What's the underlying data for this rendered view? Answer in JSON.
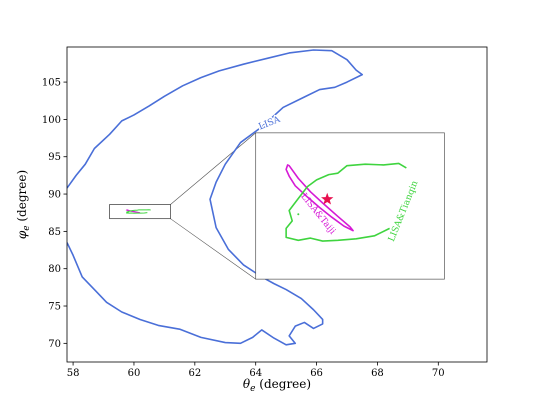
{
  "chart_data": {
    "type": "contour",
    "xlabel": "θ_e (degree)",
    "ylabel": "φ_e (degree)",
    "xlim": [
      57.8,
      71.6
    ],
    "ylim": [
      67.5,
      109.7
    ],
    "xticks": [
      "58",
      "60",
      "62",
      "64",
      "66",
      "68",
      "70"
    ],
    "yticks": [
      "70",
      "75",
      "80",
      "85",
      "90",
      "95",
      "100",
      "105"
    ],
    "grid": false,
    "series": [
      {
        "name": "LISA",
        "color": "#4a6fd8",
        "label_text": "LISA",
        "label_at": [
          64.45,
          99.5
        ],
        "label_angle_deg": -22,
        "points": [
          [
            57.8,
            90.8
          ],
          [
            58.1,
            92.5
          ],
          [
            58.4,
            94.0
          ],
          [
            58.7,
            96.1
          ],
          [
            59.2,
            98.0
          ],
          [
            59.6,
            99.8
          ],
          [
            60.0,
            100.6
          ],
          [
            60.5,
            101.8
          ],
          [
            61.0,
            103.1
          ],
          [
            61.6,
            104.5
          ],
          [
            62.2,
            105.6
          ],
          [
            62.8,
            106.5
          ],
          [
            63.6,
            107.4
          ],
          [
            64.4,
            108.2
          ],
          [
            65.1,
            108.9
          ],
          [
            65.9,
            109.3
          ],
          [
            66.5,
            109.2
          ],
          [
            67.0,
            108.0
          ],
          [
            67.3,
            106.6
          ],
          [
            67.5,
            106.0
          ],
          [
            67.0,
            105.0
          ],
          [
            66.6,
            104.3
          ],
          [
            66.1,
            104.0
          ],
          [
            65.6,
            103.0
          ],
          [
            64.9,
            101.6
          ],
          [
            64.2,
            99.0
          ],
          [
            63.5,
            96.9
          ],
          [
            63.0,
            94.0
          ],
          [
            62.7,
            91.6
          ],
          [
            62.5,
            89.3
          ],
          [
            62.7,
            85.5
          ],
          [
            63.1,
            82.6
          ],
          [
            63.6,
            80.5
          ],
          [
            64.2,
            78.9
          ],
          [
            64.6,
            78.0
          ],
          [
            65.0,
            77.2
          ],
          [
            65.5,
            76.0
          ],
          [
            65.9,
            74.5
          ],
          [
            66.2,
            73.2
          ],
          [
            66.2,
            72.6
          ],
          [
            65.9,
            72.0
          ],
          [
            65.6,
            72.8
          ],
          [
            65.3,
            72.3
          ],
          [
            65.1,
            71.0
          ],
          [
            65.3,
            70.0
          ],
          [
            65.0,
            69.8
          ],
          [
            64.6,
            70.7
          ],
          [
            64.2,
            71.8
          ],
          [
            63.9,
            70.8
          ],
          [
            63.5,
            70.0
          ],
          [
            63.0,
            70.1
          ],
          [
            62.2,
            70.8
          ],
          [
            61.5,
            71.9
          ],
          [
            60.8,
            72.4
          ],
          [
            60.2,
            73.2
          ],
          [
            59.6,
            74.2
          ],
          [
            59.1,
            75.5
          ],
          [
            58.7,
            77.2
          ],
          [
            58.3,
            78.9
          ],
          [
            58.0,
            81.8
          ],
          [
            57.8,
            83.5
          ]
        ]
      },
      {
        "name": "LISA&Taiji",
        "color": "#d61ad6",
        "label_text": "LISA&Taiji",
        "label_at": [
          66.05,
          87.35
        ],
        "label_angle_deg": 51,
        "best_fit": [
          66.35,
          89.3
        ],
        "closed": true,
        "points": [
          [
            65.1,
            93.8
          ],
          [
            65.4,
            92.1
          ],
          [
            65.8,
            90.3
          ],
          [
            66.2,
            88.8
          ],
          [
            66.7,
            87.0
          ],
          [
            67.1,
            85.6
          ],
          [
            67.2,
            85.1
          ],
          [
            66.9,
            85.7
          ],
          [
            66.5,
            86.9
          ],
          [
            66.1,
            88.2
          ],
          [
            65.7,
            89.6
          ],
          [
            65.3,
            91.1
          ],
          [
            65.1,
            92.4
          ],
          [
            65.0,
            93.3
          ],
          [
            65.05,
            93.9
          ]
        ]
      },
      {
        "name": "LISA&Tianqin",
        "color": "#3fd43f",
        "label_text": "LISA&Tianqin",
        "label_at": [
          68.85,
          87.7
        ],
        "label_angle_deg": -68,
        "closed": false,
        "points": [
          [
            68.95,
            93.5
          ],
          [
            68.7,
            94.1
          ],
          [
            68.2,
            93.9
          ],
          [
            67.6,
            94.0
          ],
          [
            67.0,
            93.8
          ],
          [
            66.7,
            92.8
          ],
          [
            66.4,
            92.6
          ],
          [
            66.0,
            91.9
          ],
          [
            65.7,
            91.0
          ],
          [
            65.4,
            89.4
          ],
          [
            65.1,
            87.8
          ],
          [
            65.2,
            86.4
          ],
          [
            65.0,
            85.4
          ],
          [
            65.0,
            84.2
          ],
          [
            65.4,
            83.8
          ],
          [
            65.8,
            84.1
          ],
          [
            66.2,
            83.7
          ],
          [
            66.7,
            83.8
          ],
          [
            67.3,
            84.0
          ],
          [
            67.9,
            84.4
          ],
          [
            68.4,
            85.4
          ]
        ]
      }
    ],
    "zoom_box": [
      59.2,
      61.2,
      86.7,
      88.6
    ],
    "zoom_view": [
      64.0,
      70.2,
      78.6,
      98.2
    ]
  }
}
